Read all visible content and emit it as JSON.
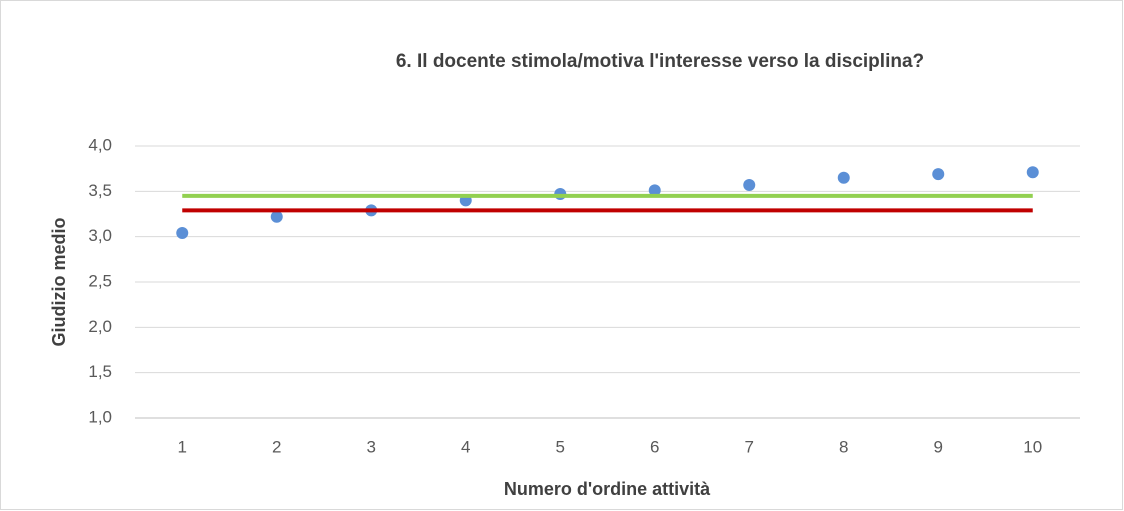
{
  "chart_data": {
    "type": "scatter",
    "title": "6. Il docente stimola/motiva l'interesse verso la disciplina?",
    "y_label": "Giudizio medio",
    "x_label": "Numero d'ordine attività",
    "xlim": [
      0.5,
      10.5
    ],
    "xticks": [
      1,
      2,
      3,
      4,
      5,
      6,
      7,
      8,
      9,
      10
    ],
    "ylim": [
      1,
      4
    ],
    "yticks": [
      {
        "value": 1,
        "label": "1,0"
      },
      {
        "value": 1.5,
        "label": "1,5"
      },
      {
        "value": 2,
        "label": "2,0"
      },
      {
        "value": 2.5,
        "label": "2,5"
      },
      {
        "value": 3,
        "label": "3,0"
      },
      {
        "value": 3.5,
        "label": "3,5"
      },
      {
        "value": 4,
        "label": "4,0"
      }
    ],
    "grid": true,
    "series": [
      {
        "kind": "point",
        "color": "#5b8fd6",
        "x": [
          1,
          2,
          3,
          4,
          5,
          6,
          7,
          8,
          9,
          10
        ],
        "values": [
          3.04,
          3.22,
          3.29,
          3.4,
          3.47,
          3.51,
          3.57,
          3.65,
          3.69,
          3.71
        ]
      },
      {
        "kind": "line",
        "color": "#92d050",
        "x": [
          1,
          10
        ],
        "values": [
          3.45,
          3.45
        ]
      },
      {
        "kind": "line",
        "color": "#c00000",
        "x": [
          1,
          10
        ],
        "values": [
          3.29,
          3.29
        ]
      }
    ]
  }
}
